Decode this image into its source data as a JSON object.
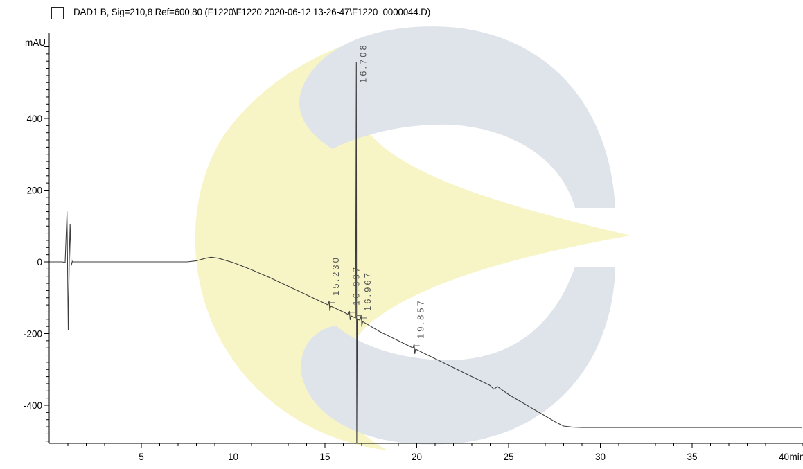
{
  "legend": {
    "label": "DAD1 B, Sig=210,8 Ref=600,80 (F1220\\F1220 2020-06-12 13-26-47\\F1220_0000044.D)"
  },
  "colors": {
    "trace": "#3c3c3c",
    "axis": "#000000",
    "watermark_yellow": "#f7f5c6",
    "watermark_blue": "#dee4ea"
  },
  "watermark": {
    "icon": "company-logo-watermark"
  },
  "chart_data": {
    "type": "line",
    "title": "",
    "xlabel": "min",
    "ylabel": "mAU",
    "xlim": [
      0,
      41
    ],
    "ylim": [
      -510,
      620
    ],
    "x_ticks": [
      5,
      10,
      15,
      20,
      25,
      30,
      35,
      40
    ],
    "x_tick_labels": [
      "5",
      "10",
      "15",
      "20",
      "25",
      "30",
      "35",
      "40"
    ],
    "x_unit_label": "min",
    "y_ticks": [
      -400,
      -200,
      0,
      200,
      400
    ],
    "y_tick_labels": [
      "-400",
      "-200",
      "0",
      "200",
      "400"
    ],
    "y_unit_label": "mAU",
    "grid": false,
    "legend": "top-left",
    "series": [
      {
        "x": [
          0.0,
          0.7,
          0.85,
          0.95,
          1.02,
          1.08,
          1.12,
          1.18,
          1.25,
          1.3,
          1.4,
          2.0,
          4.0,
          6.0,
          7.5,
          8.0,
          8.5,
          8.8,
          9.2,
          10.0,
          11.0,
          12.0,
          13.0,
          14.0,
          15.0,
          16.0,
          17.0,
          18.0,
          19.0,
          20.0,
          21.0,
          22.0,
          23.0,
          24.0,
          24.2,
          24.4,
          25.0,
          26.0,
          27.0,
          27.6,
          28.0,
          28.5,
          29.0,
          30.0,
          35.0,
          41.0
        ],
        "y": [
          0,
          0,
          -2,
          140,
          -190,
          20,
          105,
          -10,
          2,
          0,
          0,
          0,
          0,
          0,
          0,
          3,
          10,
          13,
          10,
          -2,
          -22,
          -44,
          -68,
          -92,
          -116,
          -140,
          -165,
          -195,
          -220,
          -245,
          -270,
          -295,
          -320,
          -345,
          -355,
          -348,
          -370,
          -400,
          -430,
          -448,
          -458,
          -461,
          -462,
          -462,
          -462,
          -462
        ]
      }
    ],
    "peaks": [
      {
        "rt": 15.23,
        "label": "15.230",
        "height": 12
      },
      {
        "rt": 16.337,
        "label": "16.337",
        "height": 10
      },
      {
        "rt": 16.708,
        "label": "16.708",
        "height": 715
      },
      {
        "rt": 16.967,
        "label": "16.967",
        "height": 14
      },
      {
        "rt": 19.857,
        "label": "19.857",
        "height": 12
      }
    ]
  }
}
